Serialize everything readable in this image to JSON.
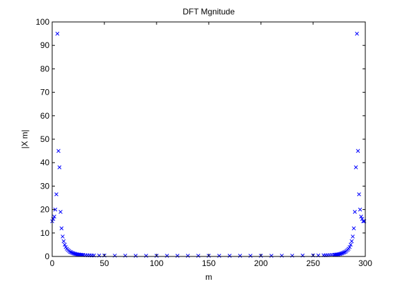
{
  "chart_data": {
    "type": "scatter",
    "title": "DFT Mgnitude",
    "xlabel": "m",
    "ylabel": "|X m|",
    "xlim": [
      0,
      300
    ],
    "ylim": [
      0,
      100
    ],
    "xticks": [
      0,
      50,
      100,
      150,
      200,
      250,
      300
    ],
    "yticks": [
      0,
      10,
      20,
      30,
      40,
      50,
      60,
      70,
      80,
      90,
      100
    ],
    "marker": "x",
    "marker_color": "#0000ff",
    "grid": false,
    "legend": "none",
    "series": [
      {
        "x": [
          0,
          1,
          2,
          3,
          4,
          5,
          6,
          7,
          8,
          9,
          10,
          11,
          12,
          13,
          14,
          15,
          16,
          17,
          18,
          19,
          20,
          21,
          22,
          23,
          24,
          25,
          26,
          27,
          28,
          29,
          30,
          32,
          34,
          36,
          38,
          40,
          45,
          50,
          60,
          70,
          80,
          90,
          100,
          110,
          120,
          130,
          140,
          150,
          160,
          170,
          180,
          190,
          200,
          210,
          220,
          230,
          240,
          250,
          255,
          260,
          262,
          264,
          266,
          268,
          270,
          271,
          272,
          273,
          274,
          275,
          276,
          277,
          278,
          279,
          280,
          281,
          282,
          283,
          284,
          285,
          286,
          287,
          288,
          289,
          290,
          291,
          292,
          293,
          294,
          295,
          296,
          297,
          298,
          299
        ],
        "values": [
          15,
          16,
          17,
          20,
          26.5,
          95,
          45,
          38,
          19,
          12,
          8.5,
          6.5,
          5,
          4,
          3.3,
          2.8,
          2.4,
          2.0,
          1.8,
          1.6,
          1.4,
          1.25,
          1.1,
          1.0,
          0.9,
          0.85,
          0.8,
          0.75,
          0.7,
          0.65,
          0.6,
          0.55,
          0.5,
          0.5,
          0.45,
          0.45,
          0.4,
          0.4,
          0.35,
          0.35,
          0.3,
          0.3,
          0.3,
          0.3,
          0.3,
          0.3,
          0.3,
          0.3,
          0.3,
          0.3,
          0.3,
          0.3,
          0.3,
          0.3,
          0.35,
          0.35,
          0.4,
          0.45,
          0.45,
          0.5,
          0.5,
          0.55,
          0.6,
          0.65,
          0.7,
          0.75,
          0.8,
          0.85,
          0.9,
          1.0,
          1.1,
          1.25,
          1.4,
          1.6,
          1.8,
          2.0,
          2.4,
          2.8,
          3.3,
          4,
          5,
          6.5,
          8.5,
          12,
          19,
          38,
          95,
          45,
          26.5,
          20,
          17,
          16,
          15,
          15
        ]
      }
    ]
  }
}
